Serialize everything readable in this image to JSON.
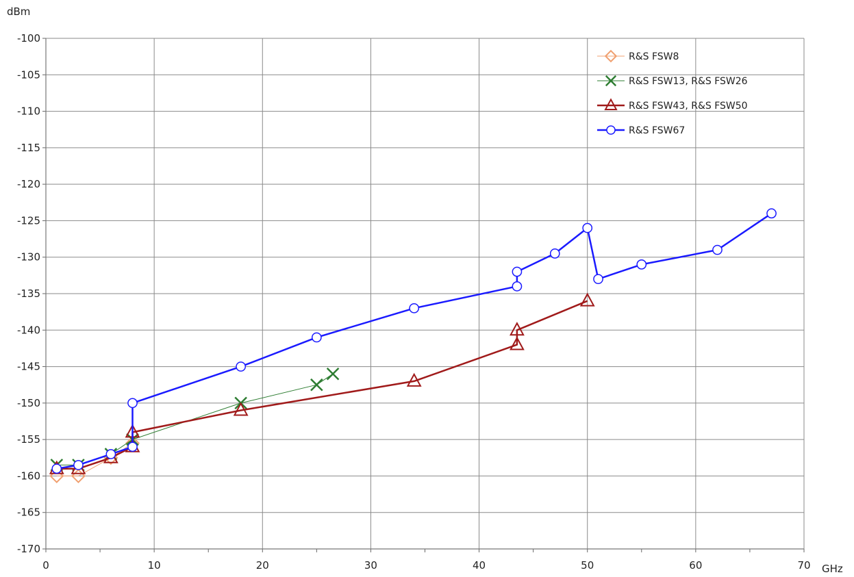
{
  "chart_data": {
    "type": "line",
    "title": "",
    "xlabel": "GHz",
    "ylabel": "dBm",
    "xlim": [
      0,
      70
    ],
    "ylim": [
      -170,
      -100
    ],
    "x_ticks": [
      "0",
      "10",
      "20",
      "30",
      "40",
      "50",
      "60",
      "70"
    ],
    "y_ticks": [
      "-100",
      "-105",
      "-110",
      "-115",
      "-120",
      "-125",
      "-130",
      "-135",
      "-140",
      "-145",
      "-150",
      "-155",
      "-160",
      "-165",
      "-170"
    ],
    "grid": true,
    "legend_position": "top-right",
    "series": [
      {
        "name": "R&S FSW8",
        "color": "#f0a070",
        "marker": "diamond",
        "line_width": 1,
        "points": [
          [
            1,
            -160
          ],
          [
            3,
            -160
          ],
          [
            6,
            -157.5
          ],
          [
            8,
            -155.5
          ]
        ]
      },
      {
        "name": "R&S FSW13, R&S FSW26",
        "color": "#2e7d32",
        "marker": "x",
        "line_width": 1,
        "points": [
          [
            1,
            -158.5
          ],
          [
            3,
            -158.5
          ],
          [
            6,
            -157
          ],
          [
            8,
            -155
          ],
          [
            18,
            -150
          ],
          [
            25,
            -147.5
          ],
          [
            26.5,
            -146
          ]
        ]
      },
      {
        "name": "R&S FSW43, R&S FSW50",
        "color": "#a01a1a",
        "marker": "triangle",
        "line_width": 2.5,
        "points": [
          [
            1,
            -159
          ],
          [
            3,
            -159
          ],
          [
            6,
            -157.5
          ],
          [
            8,
            -156
          ],
          [
            8,
            -154
          ],
          [
            18,
            -151
          ],
          [
            34,
            -147
          ],
          [
            43.5,
            -142
          ],
          [
            43.5,
            -140
          ],
          [
            50,
            -136
          ]
        ]
      },
      {
        "name": "R&S FSW67",
        "color": "#1a1aff",
        "marker": "circle",
        "line_width": 2.5,
        "points": [
          [
            1,
            -159
          ],
          [
            3,
            -158.5
          ],
          [
            6,
            -157
          ],
          [
            8,
            -156
          ],
          [
            8,
            -150
          ],
          [
            18,
            -145
          ],
          [
            25,
            -141
          ],
          [
            34,
            -137
          ],
          [
            43.5,
            -134
          ],
          [
            43.5,
            -132
          ],
          [
            47,
            -129.5
          ],
          [
            50,
            -126
          ],
          [
            51,
            -133
          ],
          [
            55,
            -131
          ],
          [
            62,
            -129
          ],
          [
            67,
            -124
          ]
        ]
      }
    ]
  }
}
